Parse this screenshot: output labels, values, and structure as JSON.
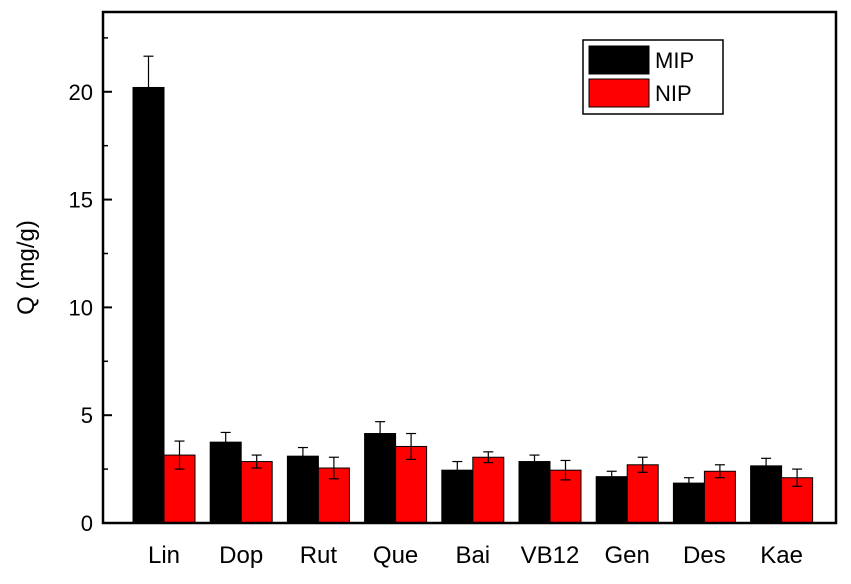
{
  "chart_data": {
    "type": "bar",
    "categories": [
      "Lin",
      "Dop",
      "Rut",
      "Que",
      "Bai",
      "VB12",
      "Gen",
      "Des",
      "Kae"
    ],
    "series": [
      {
        "name": "MIP",
        "color": "#000000",
        "values": [
          20.2,
          3.75,
          3.1,
          4.15,
          2.45,
          2.85,
          2.15,
          1.85,
          2.65
        ],
        "errors": [
          1.45,
          0.45,
          0.4,
          0.55,
          0.4,
          0.3,
          0.25,
          0.25,
          0.35
        ]
      },
      {
        "name": "NIP",
        "color": "#ff0000",
        "values": [
          3.15,
          2.85,
          2.55,
          3.55,
          3.05,
          2.45,
          2.7,
          2.4,
          2.1
        ],
        "errors": [
          0.65,
          0.3,
          0.5,
          0.6,
          0.25,
          0.45,
          0.35,
          0.3,
          0.4
        ]
      }
    ],
    "title": "",
    "xlabel": "",
    "ylabel": "Q (mg/g)",
    "ylim": [
      0,
      23.7
    ],
    "yticks": [
      0,
      5,
      10,
      15,
      20
    ],
    "ytick_labels": [
      "0",
      "5",
      "10",
      "15",
      "20"
    ],
    "grid": false,
    "legend": {
      "position": "top-right",
      "entries": [
        "MIP",
        "NIP"
      ]
    }
  }
}
